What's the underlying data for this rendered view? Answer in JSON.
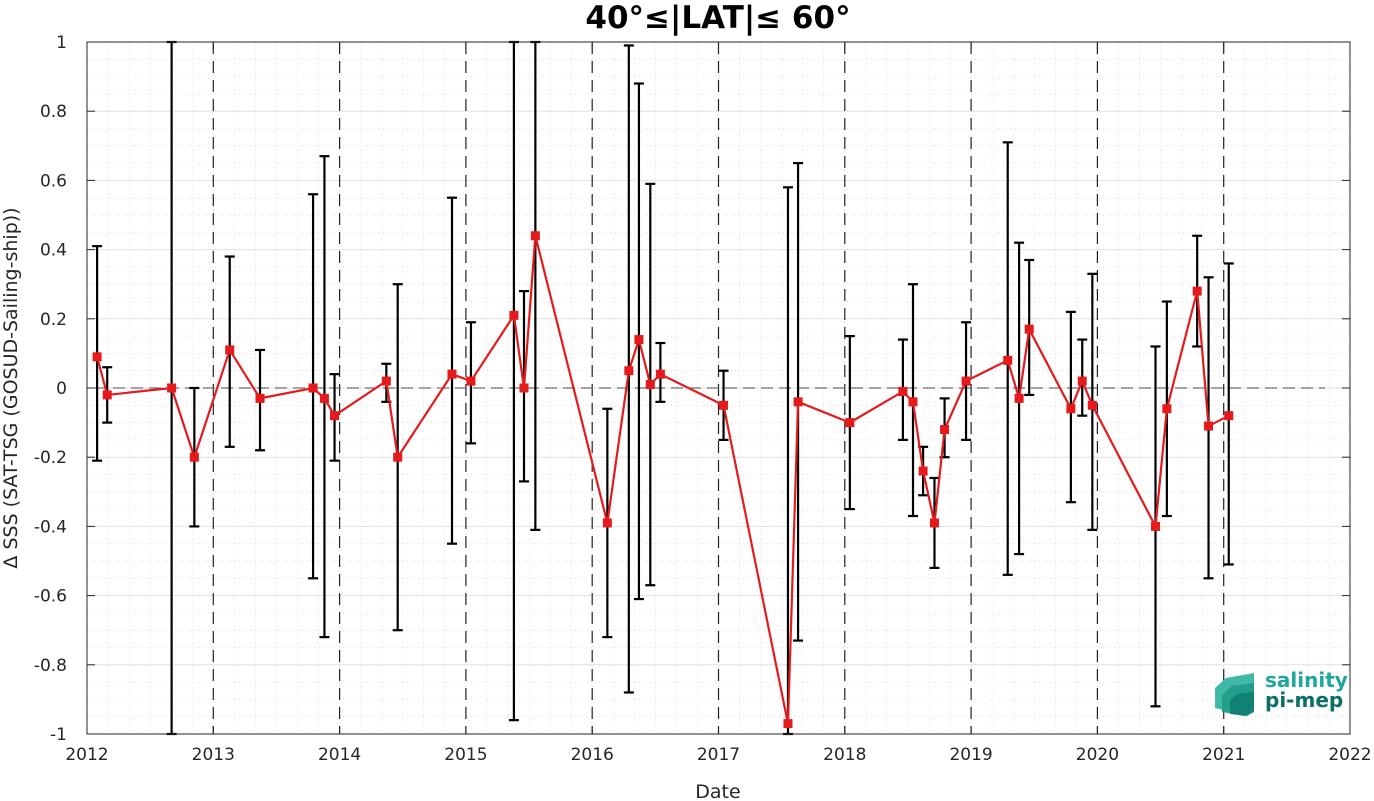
{
  "chart_data": {
    "type": "line",
    "title": "40°≤|LAT|≤ 60°",
    "xlabel": "Date",
    "ylabel": "Δ SSS (SAT-TSG (GOSUD-Sailing-ship))",
    "xlim": [
      2012,
      2022
    ],
    "ylim": [
      -1,
      1
    ],
    "x_ticks": [
      "2012",
      "2013",
      "2014",
      "2015",
      "2016",
      "2017",
      "2018",
      "2019",
      "2020",
      "2021",
      "2022"
    ],
    "y_ticks": [
      "1",
      "0.8",
      "0.6",
      "0.4",
      "0.2",
      "0",
      "-0.2",
      "-0.4",
      "-0.6",
      "-0.8",
      "-1"
    ],
    "grid": true,
    "zero_reference_line": true,
    "year_separator_lines": true,
    "series": [
      {
        "color": "#e41a1c",
        "marker": "square",
        "x": [
          2012.08,
          2012.16,
          2012.67,
          2012.85,
          2013.13,
          2013.37,
          2013.79,
          2013.88,
          2013.96,
          2014.37,
          2014.46,
          2014.89,
          2015.04,
          2015.38,
          2015.46,
          2015.55,
          2016.12,
          2016.29,
          2016.37,
          2016.46,
          2016.54,
          2017.04,
          2017.55,
          2017.63,
          2018.04,
          2018.46,
          2018.54,
          2018.62,
          2018.71,
          2018.79,
          2018.96,
          2019.29,
          2019.38,
          2019.46,
          2019.79,
          2019.88,
          2019.96,
          2020.46,
          2020.55,
          2020.79,
          2020.88,
          2021.04
        ],
        "y": [
          0.09,
          -0.02,
          0.0,
          -0.2,
          0.11,
          -0.03,
          0.0,
          -0.03,
          -0.08,
          0.02,
          -0.2,
          0.04,
          0.02,
          0.21,
          0.0,
          0.44,
          -0.39,
          0.05,
          0.14,
          0.01,
          0.04,
          -0.05,
          -0.97,
          -0.04,
          -0.1,
          -0.01,
          -0.04,
          -0.24,
          -0.39,
          -0.12,
          0.02,
          0.08,
          -0.03,
          0.17,
          -0.06,
          0.02,
          -0.05,
          -0.4,
          -0.06,
          0.28,
          -0.11,
          -0.08
        ],
        "ylo": [
          -0.21,
          -0.1,
          -1.0,
          -0.4,
          -0.17,
          -0.18,
          -0.55,
          -0.72,
          -0.21,
          -0.04,
          -0.7,
          -0.45,
          -0.16,
          -0.96,
          -0.27,
          -0.41,
          -0.72,
          -0.88,
          -0.61,
          -0.57,
          -0.04,
          -0.15,
          -1.0,
          -0.73,
          -0.35,
          -0.15,
          -0.37,
          -0.31,
          -0.52,
          -0.2,
          -0.15,
          -0.54,
          -0.48,
          -0.02,
          -0.33,
          -0.08,
          -0.41,
          -0.92,
          -0.37,
          0.12,
          -0.55,
          -0.51
        ],
        "yhi": [
          0.41,
          0.06,
          1.0,
          0.0,
          0.38,
          0.11,
          0.56,
          0.67,
          0.04,
          0.07,
          0.3,
          0.55,
          0.19,
          1.0,
          0.28,
          1.0,
          -0.06,
          0.99,
          0.88,
          0.59,
          0.13,
          0.05,
          0.58,
          0.65,
          0.15,
          0.14,
          0.3,
          -0.17,
          -0.26,
          -0.03,
          0.19,
          0.71,
          0.42,
          0.37,
          0.22,
          0.14,
          0.33,
          0.12,
          0.25,
          0.44,
          0.32,
          0.36
        ]
      }
    ]
  },
  "logo": {
    "line1": "salinity",
    "line2": "pi-mep",
    "color1": "#1fa69c",
    "color2": "#0b6f65"
  }
}
